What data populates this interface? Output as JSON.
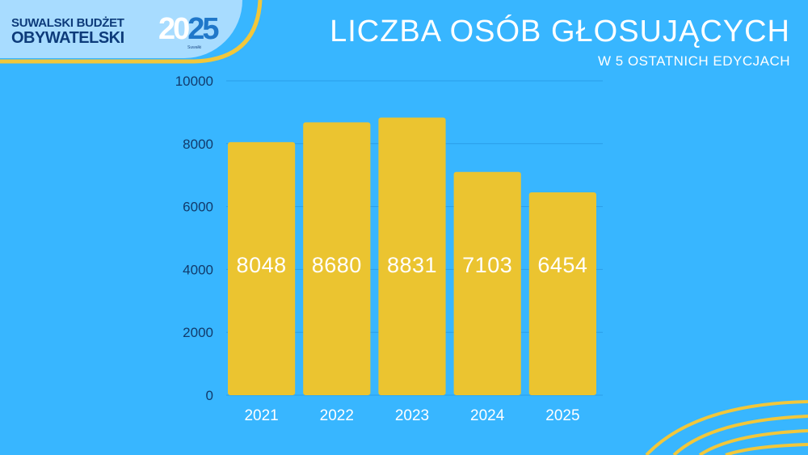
{
  "logo": {
    "line1": "SUWALSKI BUDŻET",
    "line2": "OBYWATELSKI",
    "year_a": "20",
    "year_b": "25",
    "small_text": "Suwałki"
  },
  "header": {
    "title": "LICZBA OSÓB GŁOSUJĄCYCH",
    "subtitle": "W 5 OSTATNICH EDYCJACH"
  },
  "colors": {
    "background": "#38b6ff",
    "bar": "#ebc430",
    "bar_label": "#ffffff",
    "axis_text": "#123a6b",
    "accent_line": "#f2c73a"
  },
  "chart_data": {
    "type": "bar",
    "categories": [
      "2021",
      "2022",
      "2023",
      "2024",
      "2025"
    ],
    "values": [
      8048,
      8680,
      8831,
      7103,
      6454
    ],
    "data_labels": [
      "8048",
      "8680",
      "8831",
      "7103",
      "6454"
    ],
    "title": "LICZBA OSÓB GŁOSUJĄCYCH",
    "subtitle": "W 5 OSTATNICH EDYCJACH",
    "xlabel": "",
    "ylabel": "",
    "ylim": [
      0,
      10000
    ],
    "yticks": [
      0,
      2000,
      4000,
      6000,
      8000,
      10000
    ],
    "grid": true,
    "legend": "none"
  }
}
